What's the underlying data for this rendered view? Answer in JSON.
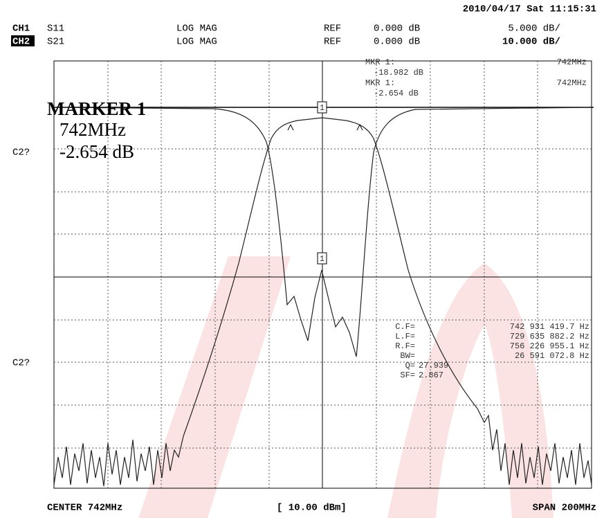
{
  "header": {
    "timestamp": "2010/04/17 Sat 11:15:31"
  },
  "channels": [
    {
      "channel": "CH1",
      "parameter": "S11",
      "format": "LOG MAG",
      "ref_label": "REF",
      "ref_value": "0.000 dB",
      "scale": "5.000 dB/"
    },
    {
      "channel": "CH2",
      "parameter": "S21",
      "format": "LOG MAG",
      "ref_label": "REF",
      "ref_value": "0.000 dB",
      "scale": "10.000 dB/"
    }
  ],
  "marker_readouts": [
    {
      "label": "MKR 1:",
      "value": "-18.982 dB",
      "freq": "742MHz"
    },
    {
      "label": "MKR 1:",
      "value": "-2.654 dB",
      "freq": "742MHz"
    }
  ],
  "active_marker": {
    "title": "MARKER 1",
    "freq": "742MHz",
    "value": "-2.654 dB"
  },
  "markers": [
    "1",
    "1"
  ],
  "side_labels": [
    "C2?",
    "C2?"
  ],
  "filter_stats": [
    {
      "label": "C.F=",
      "value": "742 931 419.7 Hz"
    },
    {
      "label": "L.F=",
      "value": "729 635 882.2 Hz"
    },
    {
      "label": "R.F=",
      "value": "756 226 955.1 Hz"
    },
    {
      "label": "BW=",
      "value": "26 591 072.8 Hz"
    },
    {
      "label": "Q=",
      "value": "27.939"
    },
    {
      "label": "SF=",
      "value": "2.867"
    }
  ],
  "footer": {
    "center": "CENTER 742MHz",
    "power": "[ 10.00 dBm]",
    "span": "SPAN 200MHz"
  }
}
